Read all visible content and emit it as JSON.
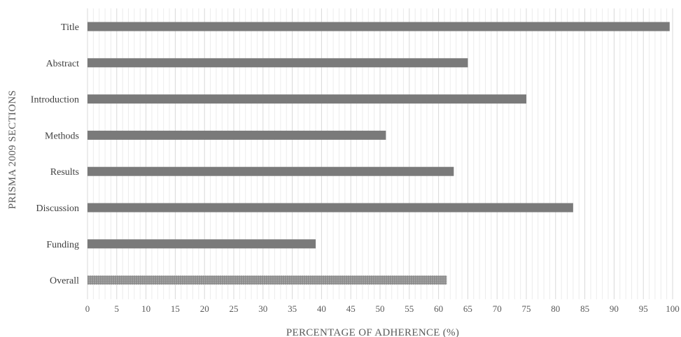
{
  "chart_data": {
    "type": "bar",
    "orientation": "horizontal",
    "categories": [
      "Title",
      "Abstract",
      "Introduction",
      "Methods",
      "Results",
      "Discussion",
      "Funding",
      "Overall"
    ],
    "values": [
      99.5,
      65,
      75,
      51,
      62.6,
      83,
      39,
      61.4
    ],
    "highlight_category": "Overall",
    "xlabel": "PERCENTAGE OF ADHERENCE (%)",
    "ylabel": "PRISMA 2009  SECTIONS",
    "xlim": [
      0,
      100
    ],
    "xticks": [
      0,
      5,
      10,
      15,
      20,
      25,
      30,
      35,
      40,
      45,
      50,
      55,
      60,
      65,
      70,
      75,
      80,
      85,
      90,
      95,
      100
    ],
    "grid": "vertical major and minor",
    "legend": "none",
    "colors": {
      "bar": "#7a7a7a",
      "overall_fill": "#8c8c8c",
      "overall_dot": "#bdbdbd",
      "grid_major": "#d9d9d9",
      "grid_minor": "#ececec",
      "text": "#595959"
    }
  }
}
